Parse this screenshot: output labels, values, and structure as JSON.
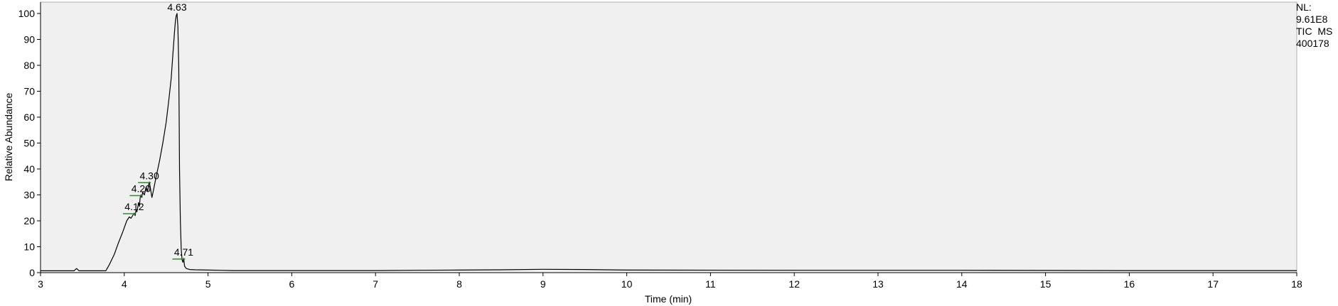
{
  "info": {
    "line1": "NL:",
    "line2": "9.61E8",
    "line3": "TIC  MS",
    "line4": "400178"
  },
  "chart_data": {
    "type": "line",
    "title": "",
    "xlabel": "Time (min)",
    "ylabel": "Relative Abundance",
    "xlim": [
      3,
      18
    ],
    "ylim": [
      0,
      100
    ],
    "xticks": [
      3,
      4,
      5,
      6,
      7,
      8,
      9,
      10,
      11,
      12,
      13,
      14,
      15,
      16,
      17,
      18
    ],
    "yticks": [
      0,
      10,
      20,
      30,
      40,
      50,
      60,
      70,
      80,
      90,
      100
    ],
    "grid": false,
    "colors": {
      "trace": "#000000",
      "background": "#f0f0f0",
      "peak_marker": "#2e8b2e"
    },
    "series": [
      {
        "x": [
          3.0,
          3.4,
          3.43,
          3.46,
          3.5,
          3.78,
          3.82,
          3.88,
          3.93,
          3.98,
          4.03,
          4.06,
          4.08,
          4.1,
          4.12,
          4.13,
          4.14,
          4.15,
          4.16,
          4.17,
          4.18,
          4.19,
          4.2,
          4.21,
          4.22,
          4.24,
          4.26,
          4.28,
          4.29,
          4.3,
          4.31,
          4.33,
          4.35,
          4.38,
          4.42,
          4.46,
          4.5,
          4.53,
          4.56,
          4.58,
          4.6,
          4.61,
          4.62,
          4.63,
          4.64,
          4.65,
          4.655,
          4.66,
          4.67,
          4.68,
          4.69,
          4.7,
          4.71,
          4.72,
          4.74,
          4.78,
          4.85,
          5.0,
          5.15,
          5.3,
          6.0,
          7.0,
          7.5,
          8.0,
          8.5,
          9.0,
          9.5,
          10.0,
          12.0,
          14.0,
          16.0,
          18.0
        ],
        "y": [
          0.7,
          0.7,
          1.6,
          0.7,
          0.7,
          0.7,
          3.0,
          7.0,
          11.5,
          15.5,
          20.0,
          21.5,
          21.0,
          22.0,
          23.0,
          22.0,
          24.0,
          23.5,
          25.0,
          27.0,
          25.5,
          29.0,
          30.0,
          29.0,
          31.0,
          30.0,
          33.0,
          31.5,
          34.0,
          35.0,
          33.0,
          29.0,
          32.0,
          37.0,
          43.0,
          50.0,
          58.0,
          66.0,
          75.0,
          84.0,
          93.0,
          97.0,
          99.0,
          100.0,
          95.0,
          80.0,
          60.0,
          40.0,
          20.0,
          9.0,
          5.0,
          4.0,
          5.5,
          2.5,
          1.6,
          1.2,
          1.1,
          1.0,
          0.9,
          0.8,
          0.8,
          0.8,
          0.9,
          1.0,
          1.1,
          1.3,
          1.2,
          1.0,
          0.9,
          0.9,
          0.8,
          0.8
        ]
      }
    ],
    "peak_labels": [
      {
        "x": 4.63,
        "y": 100.0,
        "label": "4.63"
      },
      {
        "x": 4.3,
        "y": 35.0,
        "label": "4.30"
      },
      {
        "x": 4.2,
        "y": 30.0,
        "label": "4.20"
      },
      {
        "x": 4.12,
        "y": 23.0,
        "label": "4.12"
      },
      {
        "x": 4.71,
        "y": 5.5,
        "label": "4.71"
      }
    ]
  }
}
